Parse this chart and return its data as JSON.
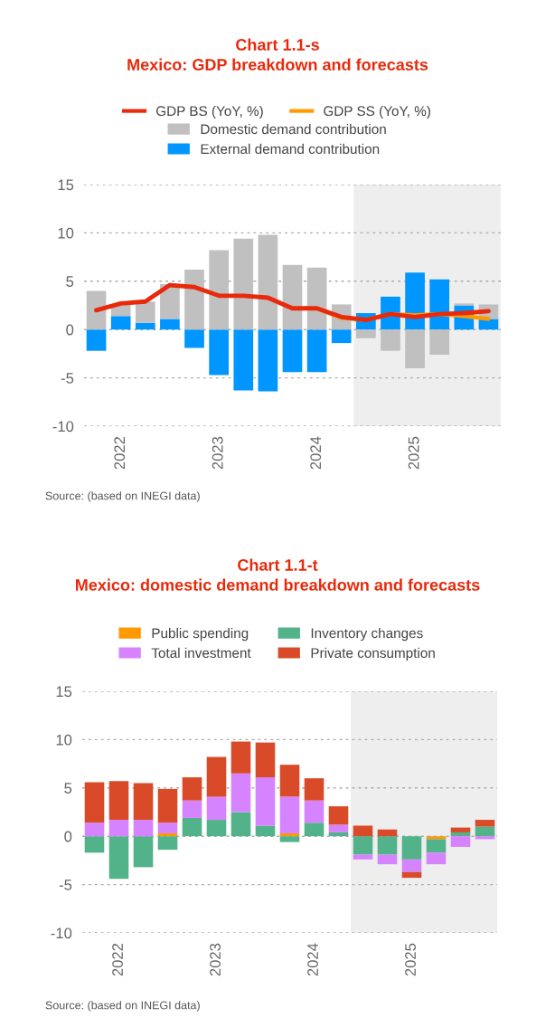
{
  "chart_data": [
    {
      "type": "bar",
      "title": "Chart 1.1-s",
      "subtitle": "Mexico: GDP breakdown and forecasts",
      "stacked": true,
      "x": [
        2021.75,
        2022.0,
        2022.25,
        2022.5,
        2022.75,
        2023.0,
        2023.25,
        2023.5,
        2023.75,
        2024.0,
        2024.25,
        2024.5,
        2024.75,
        2025.0,
        2025.25,
        2025.5,
        2025.75
      ],
      "series": [
        {
          "name": "External demand contribution",
          "color": "#0096ff",
          "values": [
            -2.2,
            1.4,
            0.7,
            1.1,
            -1.9,
            -4.7,
            -6.3,
            -6.4,
            -4.4,
            -4.4,
            -1.4,
            1.7,
            3.4,
            5.9,
            5.2,
            2.5,
            1.1
          ]
        },
        {
          "name": "Domestic demand contribution",
          "color": "#c0c0c0",
          "values": [
            4.0,
            1.2,
            2.2,
            3.6,
            6.2,
            8.2,
            9.4,
            9.8,
            6.7,
            6.4,
            2.6,
            -0.9,
            -2.2,
            -4.0,
            -2.6,
            0.2,
            1.5
          ]
        },
        {
          "name": "GDP SS (YoY, %)",
          "type": "line",
          "color": "#ff9900",
          "values": [
            null,
            null,
            null,
            null,
            null,
            null,
            null,
            null,
            null,
            2.2,
            1.2,
            1.0,
            1.6,
            1.5,
            1.6,
            1.4,
            1.1
          ]
        },
        {
          "name": "GDP BS (YoY, %)",
          "type": "line",
          "color": "#e8290b",
          "values": [
            2.0,
            2.7,
            2.9,
            4.6,
            4.4,
            3.5,
            3.5,
            3.3,
            2.2,
            2.2,
            1.3,
            1.0,
            1.6,
            1.3,
            1.6,
            1.7,
            1.9
          ]
        }
      ],
      "xlim": [
        2021.625,
        2025.875
      ],
      "xticks": [
        2022,
        2023,
        2024,
        2025
      ],
      "ylim": [
        -10,
        15
      ],
      "yticks": [
        -10,
        -5,
        0,
        5,
        10,
        15
      ],
      "bands": [
        {
          "axis": "x",
          "from": 2024.375,
          "to": 2025.875,
          "color": "#eeeeee"
        }
      ],
      "grid": "y",
      "legend": "top",
      "annotations": [
        "Source: (based on INEGI data)"
      ]
    },
    {
      "type": "bar",
      "title": "Chart 1.1-t",
      "subtitle": "Mexico: domestic demand breakdown and forecasts",
      "stacked": true,
      "x": [
        2021.75,
        2022.0,
        2022.25,
        2022.5,
        2022.75,
        2023.0,
        2023.25,
        2023.5,
        2023.75,
        2024.0,
        2024.25,
        2024.5,
        2024.75,
        2025.0,
        2025.25,
        2025.5,
        2025.75
      ],
      "series": [
        {
          "name": "Public spending",
          "color": "#ff9900",
          "values": [
            0,
            0,
            0,
            0.3,
            0,
            0,
            0,
            0,
            0.3,
            0,
            0,
            0,
            0,
            0,
            -0.3,
            0,
            0
          ]
        },
        {
          "name": "Inventory changes",
          "color": "#52b28a",
          "values": [
            -1.7,
            -4.4,
            -3.2,
            -1.4,
            1.9,
            1.7,
            2.5,
            1.1,
            -0.6,
            1.4,
            0.4,
            -1.9,
            -1.9,
            -2.4,
            -1.4,
            0.4,
            1.0
          ]
        },
        {
          "name": "Total investment",
          "color": "#d683ff",
          "values": [
            1.4,
            1.7,
            1.7,
            1.1,
            1.8,
            2.4,
            4.0,
            5.0,
            3.8,
            2.3,
            0.8,
            -0.5,
            -1.0,
            -1.3,
            -1.2,
            -1.1,
            -0.3
          ]
        },
        {
          "name": "Private consumption",
          "color": "#d94b28",
          "values": [
            4.2,
            4.0,
            3.8,
            3.5,
            2.4,
            4.1,
            3.3,
            3.6,
            3.3,
            2.3,
            1.9,
            1.1,
            0.7,
            -0.6,
            0,
            0.5,
            0.7
          ]
        }
      ],
      "xlim": [
        2021.625,
        2025.875
      ],
      "xticks": [
        2022,
        2023,
        2024,
        2025
      ],
      "ylim": [
        -10,
        15
      ],
      "yticks": [
        -10,
        -5,
        0,
        5,
        10,
        15
      ],
      "bands": [
        {
          "axis": "x",
          "from": 2024.375,
          "to": 2025.875,
          "color": "#eeeeee"
        }
      ],
      "grid": "y",
      "legend": "top",
      "annotations": [
        "Source: (based on INEGI data)"
      ]
    }
  ]
}
